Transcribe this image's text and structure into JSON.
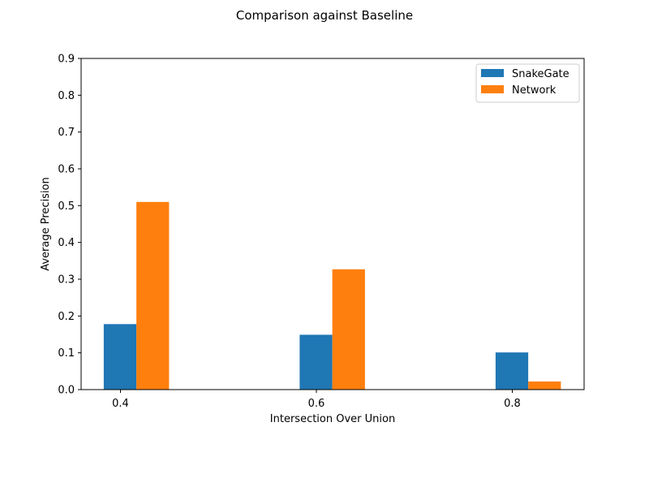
{
  "chart_data": {
    "type": "bar",
    "title": "Comparison against Baseline",
    "xlabel": "Intersection Over Union",
    "ylabel": "Average Precision",
    "categories": [
      "0.4",
      "0.6",
      "0.8"
    ],
    "ylim": [
      0,
      0.9
    ],
    "yticks": [
      "0.0",
      "0.1",
      "0.2",
      "0.3",
      "0.4",
      "0.5",
      "0.6",
      "0.7",
      "0.8",
      "0.9"
    ],
    "grid": false,
    "legend_position": "top-right",
    "series": [
      {
        "name": "SnakeGate",
        "color": "#1f77b4",
        "values": [
          0.178,
          0.149,
          0.101
        ]
      },
      {
        "name": "Network",
        "color": "#ff7f0e",
        "values": [
          0.51,
          0.327,
          0.022
        ]
      }
    ]
  }
}
